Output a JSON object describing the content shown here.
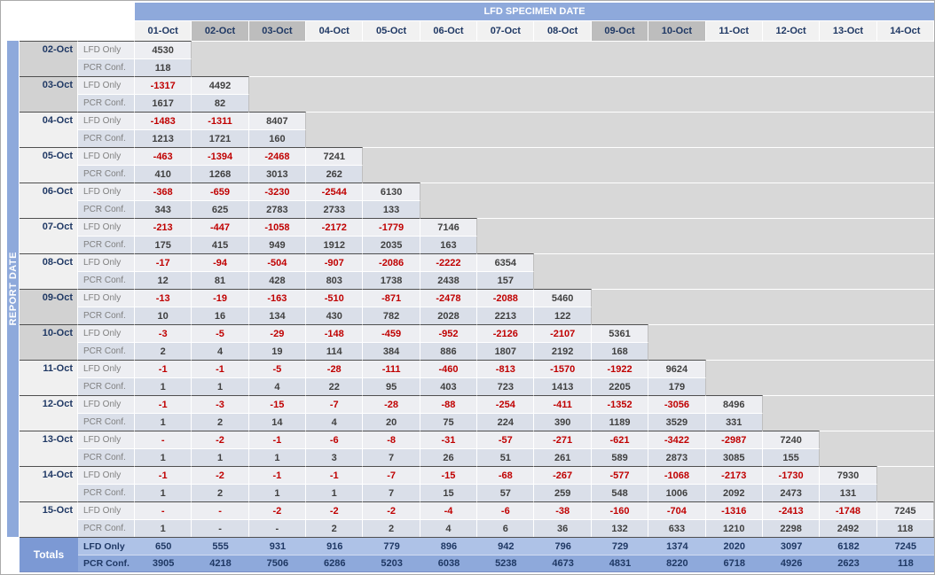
{
  "title": "LFD SPECIMEN DATE",
  "left_axis_label": "REPORT DATE",
  "row_types": {
    "lfd": "LFD Only",
    "pcr": "PCR Conf."
  },
  "columns": [
    "01-Oct",
    "02-Oct",
    "03-Oct",
    "04-Oct",
    "05-Oct",
    "06-Oct",
    "07-Oct",
    "08-Oct",
    "09-Oct",
    "10-Oct",
    "11-Oct",
    "12-Oct",
    "13-Oct",
    "14-Oct"
  ],
  "weekend_column_indexes": [
    1,
    2,
    8,
    9
  ],
  "rows": [
    {
      "date": "02-Oct",
      "weekend": true,
      "lfd": [
        "4530"
      ],
      "pcr": [
        "118"
      ]
    },
    {
      "date": "03-Oct",
      "weekend": true,
      "lfd": [
        "-1317",
        "4492"
      ],
      "pcr": [
        "1617",
        "82"
      ]
    },
    {
      "date": "04-Oct",
      "weekend": false,
      "lfd": [
        "-1483",
        "-1311",
        "8407"
      ],
      "pcr": [
        "1213",
        "1721",
        "160"
      ]
    },
    {
      "date": "05-Oct",
      "weekend": false,
      "lfd": [
        "-463",
        "-1394",
        "-2468",
        "7241"
      ],
      "pcr": [
        "410",
        "1268",
        "3013",
        "262"
      ]
    },
    {
      "date": "06-Oct",
      "weekend": false,
      "lfd": [
        "-368",
        "-659",
        "-3230",
        "-2544",
        "6130"
      ],
      "pcr": [
        "343",
        "625",
        "2783",
        "2733",
        "133"
      ]
    },
    {
      "date": "07-Oct",
      "weekend": false,
      "lfd": [
        "-213",
        "-447",
        "-1058",
        "-2172",
        "-1779",
        "7146"
      ],
      "pcr": [
        "175",
        "415",
        "949",
        "1912",
        "2035",
        "163"
      ]
    },
    {
      "date": "08-Oct",
      "weekend": false,
      "lfd": [
        "-17",
        "-94",
        "-504",
        "-907",
        "-2086",
        "-2222",
        "6354"
      ],
      "pcr": [
        "12",
        "81",
        "428",
        "803",
        "1738",
        "2438",
        "157"
      ]
    },
    {
      "date": "09-Oct",
      "weekend": true,
      "lfd": [
        "-13",
        "-19",
        "-163",
        "-510",
        "-871",
        "-2478",
        "-2088",
        "5460"
      ],
      "pcr": [
        "10",
        "16",
        "134",
        "430",
        "782",
        "2028",
        "2213",
        "122"
      ]
    },
    {
      "date": "10-Oct",
      "weekend": true,
      "lfd": [
        "-3",
        "-5",
        "-29",
        "-148",
        "-459",
        "-952",
        "-2126",
        "-2107",
        "5361"
      ],
      "pcr": [
        "2",
        "4",
        "19",
        "114",
        "384",
        "886",
        "1807",
        "2192",
        "168"
      ]
    },
    {
      "date": "11-Oct",
      "weekend": false,
      "lfd": [
        "-1",
        "-1",
        "-5",
        "-28",
        "-111",
        "-460",
        "-813",
        "-1570",
        "-1922",
        "9624"
      ],
      "pcr": [
        "1",
        "1",
        "4",
        "22",
        "95",
        "403",
        "723",
        "1413",
        "2205",
        "179"
      ]
    },
    {
      "date": "12-Oct",
      "weekend": false,
      "lfd": [
        "-1",
        "-3",
        "-15",
        "-7",
        "-28",
        "-88",
        "-254",
        "-411",
        "-1352",
        "-3056",
        "8496"
      ],
      "pcr": [
        "1",
        "2",
        "14",
        "4",
        "20",
        "75",
        "224",
        "390",
        "1189",
        "3529",
        "331"
      ]
    },
    {
      "date": "13-Oct",
      "weekend": false,
      "lfd": [
        "-",
        "-2",
        "-1",
        "-6",
        "-8",
        "-31",
        "-57",
        "-271",
        "-621",
        "-3422",
        "-2987",
        "7240"
      ],
      "pcr": [
        "1",
        "1",
        "1",
        "3",
        "7",
        "26",
        "51",
        "261",
        "589",
        "2873",
        "3085",
        "155"
      ]
    },
    {
      "date": "14-Oct",
      "weekend": false,
      "lfd": [
        "-1",
        "-2",
        "-1",
        "-1",
        "-7",
        "-15",
        "-68",
        "-267",
        "-577",
        "-1068",
        "-2173",
        "-1730",
        "7930"
      ],
      "pcr": [
        "1",
        "2",
        "1",
        "1",
        "7",
        "15",
        "57",
        "259",
        "548",
        "1006",
        "2092",
        "2473",
        "131"
      ]
    },
    {
      "date": "15-Oct",
      "weekend": false,
      "lfd": [
        "-",
        "-",
        "-2",
        "-2",
        "-2",
        "-4",
        "-6",
        "-38",
        "-160",
        "-704",
        "-1316",
        "-2413",
        "-1748",
        "7245"
      ],
      "pcr": [
        "1",
        "-",
        "-",
        "2",
        "2",
        "4",
        "6",
        "36",
        "132",
        "633",
        "1210",
        "2298",
        "2492",
        "118"
      ]
    }
  ],
  "totals": {
    "label": "Totals",
    "lfd": [
      "650",
      "555",
      "931",
      "916",
      "779",
      "896",
      "942",
      "796",
      "729",
      "1374",
      "2020",
      "3097",
      "6182",
      "7245"
    ],
    "pcr": [
      "3905",
      "4218",
      "7506",
      "6286",
      "5203",
      "6038",
      "5238",
      "4673",
      "4831",
      "8220",
      "6718",
      "4926",
      "2623",
      "118"
    ]
  },
  "colors": {
    "header_band_blue": "#8EA9DB",
    "totals_label_blue": "#7C99D4",
    "totals_lfd_blue": "#AEC2E7",
    "totals_pcr_blue": "#8EA9DB",
    "negative_red": "#C00000",
    "date_navy": "#1F3864",
    "value_dark": "#404040",
    "lfd_row_bg": "#EDEEF2",
    "pcr_row_bg": "#DADFE9",
    "empty_bg": "#D8D8D8",
    "weekend_header_bg": "#BDBDBD",
    "weekday_header_bg": "#F1F1F1",
    "weekend_rowlabel_bg": "#D2D2D2",
    "weekday_rowlabel_bg": "#F0F0F0"
  }
}
